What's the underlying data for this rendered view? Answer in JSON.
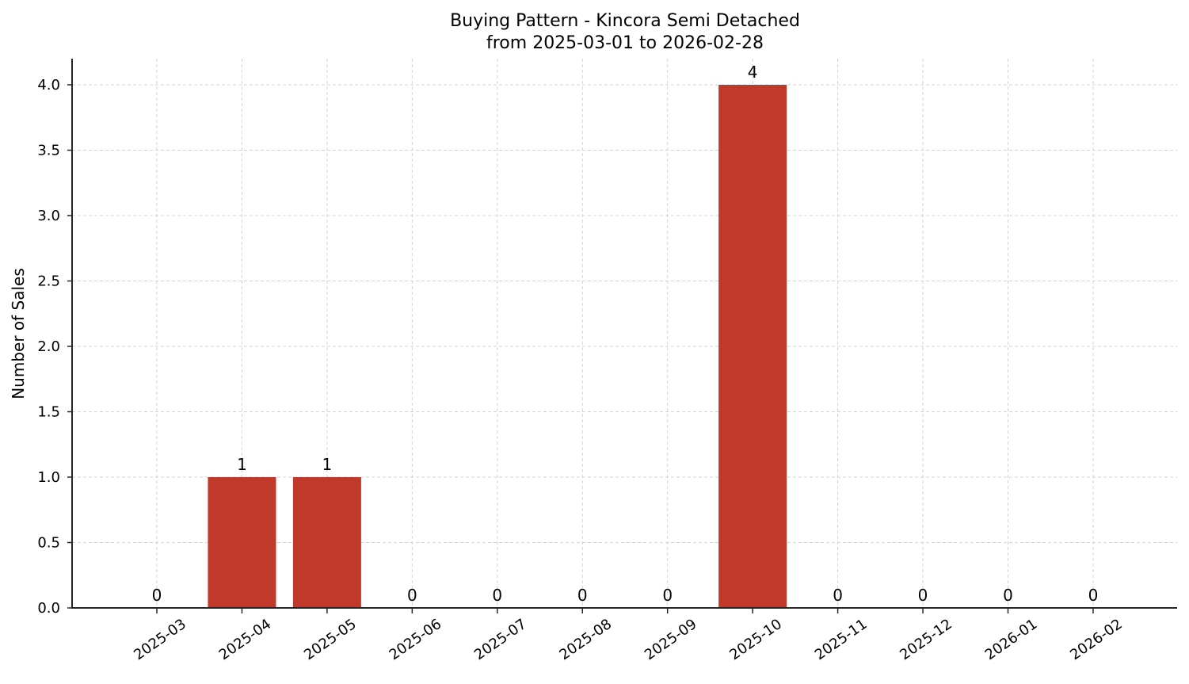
{
  "chart_data": {
    "type": "bar",
    "title": "Buying Pattern - Kincora Semi Detached",
    "subtitle": "from 2025-03-01 to 2026-02-28",
    "xlabel": "",
    "ylabel": "Number of Sales",
    "categories": [
      "2025-03",
      "2025-04",
      "2025-05",
      "2025-06",
      "2025-07",
      "2025-08",
      "2025-09",
      "2025-10",
      "2025-11",
      "2025-12",
      "2026-01",
      "2026-02"
    ],
    "values": [
      0,
      1,
      1,
      0,
      0,
      0,
      0,
      4,
      0,
      0,
      0,
      0
    ],
    "ylim": [
      0,
      4.2
    ],
    "yticks": [
      "0.0",
      "0.5",
      "1.0",
      "1.5",
      "2.0",
      "2.5",
      "3.0",
      "3.5",
      "4.0"
    ],
    "grid": true,
    "bar_color": "#c0392b",
    "data_labels": true,
    "legend": null
  }
}
